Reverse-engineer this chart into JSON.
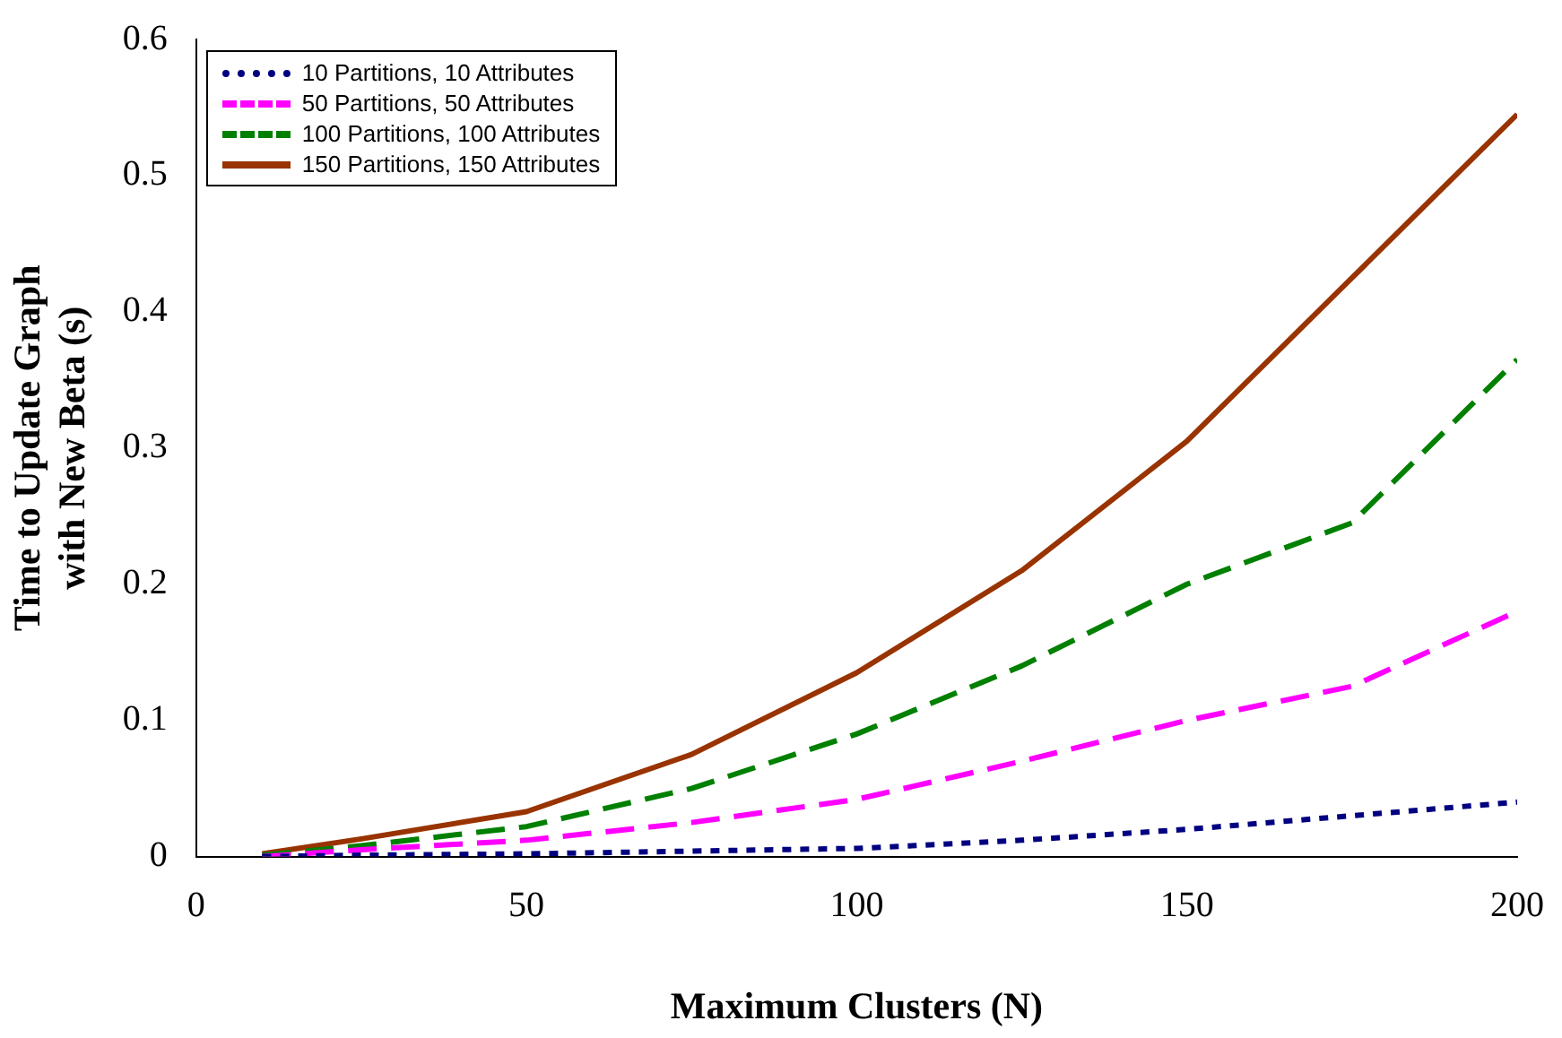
{
  "chart_data": {
    "type": "line",
    "xlabel": "Maximum Clusters (N)",
    "ylabel": "Time to Update Graph with New Beta (s)",
    "x": [
      10,
      25,
      50,
      75,
      100,
      125,
      150,
      175,
      200
    ],
    "series": [
      {
        "name": "10 Partitions, 10 Attributes",
        "color": "#000080",
        "line_style": "dotted",
        "values": [
          0,
          0.001,
          0.002,
          0.004,
          0.006,
          0.012,
          0.02,
          0.03,
          0.04
        ]
      },
      {
        "name": "50 Partitions, 50 Attributes",
        "color": "#ff00ff",
        "line_style": "dashed",
        "values": [
          0,
          0.005,
          0.012,
          0.025,
          0.042,
          0.07,
          0.1,
          0.125,
          0.18
        ]
      },
      {
        "name": "100 Partitions, 100 Attributes",
        "color": "#008000",
        "line_style": "dashed",
        "values": [
          0.001,
          0.008,
          0.022,
          0.05,
          0.09,
          0.14,
          0.2,
          0.245,
          0.365
        ]
      },
      {
        "name": "150 Partitions, 150 Attributes",
        "color": "#993300",
        "line_style": "solid",
        "values": [
          0.002,
          0.013,
          0.033,
          0.075,
          0.135,
          0.21,
          0.305,
          0.425,
          0.545
        ]
      }
    ],
    "xlim": [
      0,
      200
    ],
    "xticks": [
      0,
      50,
      100,
      150,
      200
    ],
    "ylim": [
      0,
      0.6
    ],
    "yticks": [
      0,
      0.1,
      0.2,
      0.3,
      0.4,
      0.5,
      0.6
    ],
    "grid": false,
    "legend": "top left",
    "marker": "none"
  }
}
